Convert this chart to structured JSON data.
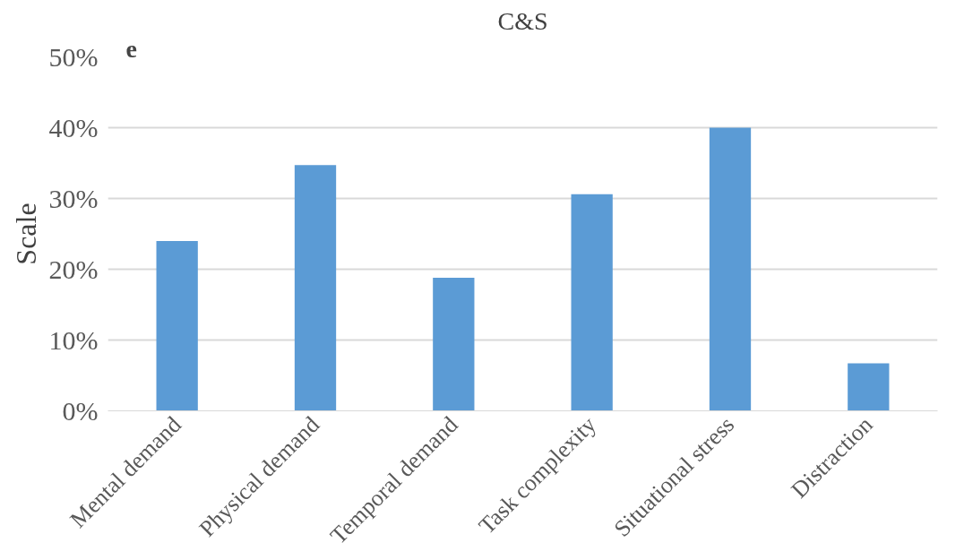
{
  "chart_data": {
    "type": "bar",
    "title": "C&S",
    "ylabel": "Scale",
    "categories": [
      "Mental demand",
      "Physical demand",
      "Temporal demand",
      "Task complexity",
      "Situational stress",
      "Distraction"
    ],
    "values": [
      0.24,
      0.347,
      0.188,
      0.306,
      0.4,
      0.067
    ],
    "color": "#5b9bd5",
    "ylim": [
      0,
      0.5
    ],
    "yticks": [
      {
        "value": 0,
        "label": "0%"
      },
      {
        "value": 0.1,
        "label": "10%"
      },
      {
        "value": 0.2,
        "label": "20%"
      },
      {
        "value": 0.3,
        "label": "30%"
      },
      {
        "value": 0.4,
        "label": "40%"
      },
      {
        "value": 0.5,
        "label": "50%"
      }
    ],
    "grid": "y",
    "annotations": [
      "e"
    ]
  }
}
